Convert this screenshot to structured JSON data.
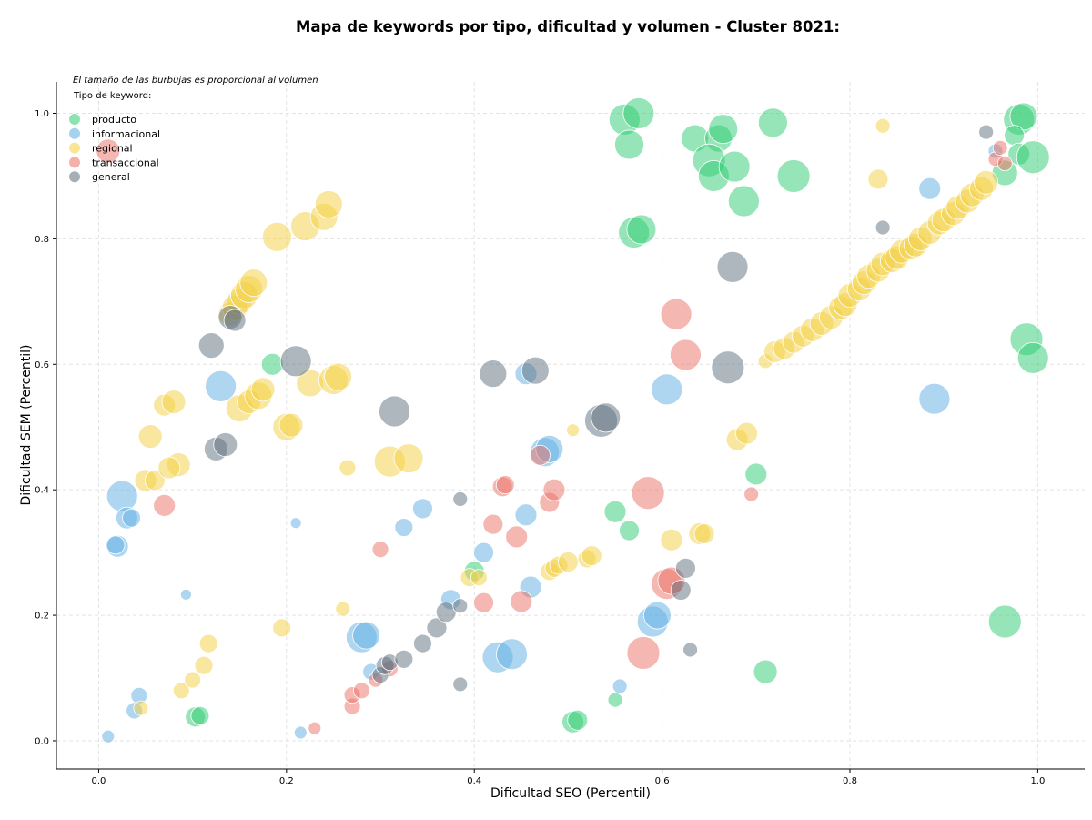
{
  "chart_data": {
    "type": "scatter",
    "title": "Mapa de keywords por tipo, dificultad y volumen - Cluster 8021:",
    "xlabel": "Dificultad SEO (Percentil)",
    "ylabel": "Dificultad SEM (Percentil)",
    "xlim": [
      -0.045,
      1.05
    ],
    "ylim": [
      -0.045,
      1.05
    ],
    "xticks": [
      0.0,
      0.2,
      0.4,
      0.6,
      0.8,
      1.0
    ],
    "yticks": [
      0.0,
      0.2,
      0.4,
      0.6,
      0.8,
      1.0
    ],
    "xtick_labels": [
      "0.0",
      "0.2",
      "0.4",
      "0.6",
      "0.8",
      "1.0"
    ],
    "ytick_labels": [
      "0.0",
      "0.2",
      "0.4",
      "0.6",
      "0.8",
      "1.0"
    ],
    "grid": true,
    "legend": {
      "placement": "top-left",
      "note": "El tamaño de las burbujas es proporcional al volumen",
      "title": "Tipo de keyword:"
    },
    "series": [
      {
        "name": "producto",
        "color": "#2ecc71",
        "points": [
          [
            0.56,
            0.99,
            17
          ],
          [
            0.575,
            1.0,
            17
          ],
          [
            0.565,
            0.95,
            16
          ],
          [
            0.57,
            0.81,
            17
          ],
          [
            0.578,
            0.815,
            16
          ],
          [
            0.635,
            0.96,
            15
          ],
          [
            0.66,
            0.96,
            15
          ],
          [
            0.665,
            0.975,
            16
          ],
          [
            0.65,
            0.925,
            18
          ],
          [
            0.655,
            0.9,
            17
          ],
          [
            0.677,
            0.915,
            17
          ],
          [
            0.687,
            0.86,
            17
          ],
          [
            0.718,
            0.985,
            16
          ],
          [
            0.74,
            0.9,
            18
          ],
          [
            0.98,
            0.99,
            17
          ],
          [
            0.985,
            0.995,
            15
          ],
          [
            0.965,
            0.905,
            14
          ],
          [
            0.975,
            0.965,
            11
          ],
          [
            0.98,
            0.935,
            12
          ],
          [
            0.995,
            0.93,
            18
          ],
          [
            0.988,
            0.64,
            18
          ],
          [
            0.995,
            0.61,
            17
          ],
          [
            0.965,
            0.19,
            18
          ],
          [
            0.71,
            0.11,
            13
          ],
          [
            0.7,
            0.425,
            12
          ],
          [
            0.55,
            0.365,
            12
          ],
          [
            0.565,
            0.335,
            11
          ],
          [
            0.55,
            0.065,
            8
          ],
          [
            0.505,
            0.03,
            12
          ],
          [
            0.51,
            0.033,
            11
          ],
          [
            0.4,
            0.27,
            11
          ],
          [
            0.185,
            0.6,
            12
          ],
          [
            0.103,
            0.038,
            11
          ],
          [
            0.108,
            0.04,
            10
          ]
        ]
      },
      {
        "name": "informacional",
        "color": "#5dade2",
        "points": [
          [
            0.025,
            0.39,
            17
          ],
          [
            0.03,
            0.355,
            12
          ],
          [
            0.035,
            0.355,
            10
          ],
          [
            0.02,
            0.31,
            12
          ],
          [
            0.018,
            0.312,
            10
          ],
          [
            0.093,
            0.233,
            6
          ],
          [
            0.043,
            0.072,
            9
          ],
          [
            0.038,
            0.048,
            9
          ],
          [
            0.01,
            0.007,
            7
          ],
          [
            0.21,
            0.347,
            6
          ],
          [
            0.215,
            0.013,
            7
          ],
          [
            0.13,
            0.565,
            17
          ],
          [
            0.28,
            0.165,
            17
          ],
          [
            0.285,
            0.168,
            15
          ],
          [
            0.29,
            0.11,
            9
          ],
          [
            0.325,
            0.34,
            10
          ],
          [
            0.345,
            0.37,
            11
          ],
          [
            0.375,
            0.225,
            11
          ],
          [
            0.41,
            0.3,
            11
          ],
          [
            0.425,
            0.133,
            17
          ],
          [
            0.44,
            0.138,
            17
          ],
          [
            0.455,
            0.585,
            12
          ],
          [
            0.455,
            0.36,
            12
          ],
          [
            0.46,
            0.245,
            12
          ],
          [
            0.475,
            0.46,
            16
          ],
          [
            0.48,
            0.465,
            15
          ],
          [
            0.555,
            0.087,
            8
          ],
          [
            0.59,
            0.19,
            17
          ],
          [
            0.595,
            0.2,
            15
          ],
          [
            0.605,
            0.56,
            17
          ],
          [
            0.885,
            0.88,
            12
          ],
          [
            0.89,
            0.545,
            17
          ],
          [
            0.955,
            0.94,
            8
          ]
        ]
      },
      {
        "name": "regional",
        "color": "#f4d03f",
        "points": [
          [
            0.045,
            0.052,
            8
          ],
          [
            0.05,
            0.415,
            12
          ],
          [
            0.055,
            0.485,
            13
          ],
          [
            0.06,
            0.415,
            11
          ],
          [
            0.07,
            0.535,
            12
          ],
          [
            0.08,
            0.54,
            13
          ],
          [
            0.085,
            0.44,
            13
          ],
          [
            0.075,
            0.435,
            12
          ],
          [
            0.088,
            0.08,
            9
          ],
          [
            0.1,
            0.097,
            9
          ],
          [
            0.112,
            0.12,
            10
          ],
          [
            0.117,
            0.155,
            10
          ],
          [
            0.14,
            0.68,
            13
          ],
          [
            0.145,
            0.69,
            14
          ],
          [
            0.15,
            0.7,
            14
          ],
          [
            0.155,
            0.71,
            15
          ],
          [
            0.16,
            0.72,
            15
          ],
          [
            0.165,
            0.73,
            15
          ],
          [
            0.15,
            0.53,
            15
          ],
          [
            0.16,
            0.54,
            13
          ],
          [
            0.17,
            0.55,
            15
          ],
          [
            0.175,
            0.56,
            13
          ],
          [
            0.19,
            0.803,
            16
          ],
          [
            0.195,
            0.18,
            10
          ],
          [
            0.2,
            0.5,
            15
          ],
          [
            0.205,
            0.503,
            13
          ],
          [
            0.22,
            0.82,
            16
          ],
          [
            0.225,
            0.57,
            15
          ],
          [
            0.24,
            0.835,
            15
          ],
          [
            0.245,
            0.855,
            15
          ],
          [
            0.25,
            0.575,
            16
          ],
          [
            0.255,
            0.58,
            15
          ],
          [
            0.26,
            0.21,
            8
          ],
          [
            0.265,
            0.435,
            9
          ],
          [
            0.31,
            0.445,
            17
          ],
          [
            0.33,
            0.45,
            16
          ],
          [
            0.395,
            0.26,
            10
          ],
          [
            0.405,
            0.26,
            9
          ],
          [
            0.48,
            0.27,
            10
          ],
          [
            0.485,
            0.275,
            10
          ],
          [
            0.49,
            0.28,
            10
          ],
          [
            0.5,
            0.285,
            11
          ],
          [
            0.505,
            0.495,
            7
          ],
          [
            0.52,
            0.29,
            10
          ],
          [
            0.525,
            0.295,
            11
          ],
          [
            0.61,
            0.32,
            12
          ],
          [
            0.64,
            0.33,
            12
          ],
          [
            0.645,
            0.33,
            11
          ],
          [
            0.68,
            0.48,
            12
          ],
          [
            0.69,
            0.49,
            12
          ],
          [
            0.71,
            0.605,
            8
          ],
          [
            0.72,
            0.62,
            12
          ],
          [
            0.73,
            0.625,
            12
          ],
          [
            0.74,
            0.635,
            12
          ],
          [
            0.75,
            0.645,
            12
          ],
          [
            0.76,
            0.655,
            13
          ],
          [
            0.77,
            0.665,
            13
          ],
          [
            0.78,
            0.675,
            13
          ],
          [
            0.79,
            0.69,
            13
          ],
          [
            0.795,
            0.695,
            13
          ],
          [
            0.8,
            0.71,
            13
          ],
          [
            0.81,
            0.72,
            13
          ],
          [
            0.815,
            0.73,
            13
          ],
          [
            0.82,
            0.74,
            13
          ],
          [
            0.83,
            0.75,
            13
          ],
          [
            0.835,
            0.76,
            13
          ],
          [
            0.845,
            0.765,
            13
          ],
          [
            0.85,
            0.77,
            13
          ],
          [
            0.855,
            0.78,
            13
          ],
          [
            0.865,
            0.785,
            13
          ],
          [
            0.87,
            0.79,
            13
          ],
          [
            0.875,
            0.8,
            13
          ],
          [
            0.885,
            0.81,
            13
          ],
          [
            0.895,
            0.825,
            13
          ],
          [
            0.9,
            0.83,
            13
          ],
          [
            0.91,
            0.84,
            13
          ],
          [
            0.915,
            0.85,
            13
          ],
          [
            0.925,
            0.86,
            13
          ],
          [
            0.93,
            0.87,
            13
          ],
          [
            0.94,
            0.88,
            13
          ],
          [
            0.945,
            0.89,
            13
          ],
          [
            0.83,
            0.895,
            11
          ],
          [
            0.835,
            0.98,
            8
          ]
        ]
      },
      {
        "name": "transaccional",
        "color": "#ec7063",
        "points": [
          [
            0.01,
            0.94,
            13
          ],
          [
            0.07,
            0.375,
            12
          ],
          [
            0.23,
            0.02,
            7
          ],
          [
            0.27,
            0.055,
            9
          ],
          [
            0.27,
            0.073,
            9
          ],
          [
            0.28,
            0.08,
            9
          ],
          [
            0.295,
            0.097,
            8
          ],
          [
            0.3,
            0.305,
            9
          ],
          [
            0.31,
            0.115,
            9
          ],
          [
            0.41,
            0.22,
            11
          ],
          [
            0.42,
            0.345,
            11
          ],
          [
            0.43,
            0.405,
            11
          ],
          [
            0.433,
            0.408,
            10
          ],
          [
            0.445,
            0.325,
            12
          ],
          [
            0.45,
            0.222,
            12
          ],
          [
            0.47,
            0.455,
            11
          ],
          [
            0.48,
            0.38,
            11
          ],
          [
            0.485,
            0.4,
            12
          ],
          [
            0.58,
            0.14,
            18
          ],
          [
            0.585,
            0.395,
            18
          ],
          [
            0.605,
            0.25,
            17
          ],
          [
            0.61,
            0.255,
            15
          ],
          [
            0.615,
            0.68,
            17
          ],
          [
            0.625,
            0.615,
            17
          ],
          [
            0.695,
            0.393,
            8
          ],
          [
            0.955,
            0.927,
            8
          ],
          [
            0.96,
            0.945,
            8
          ],
          [
            0.965,
            0.92,
            8
          ]
        ]
      },
      {
        "name": "general",
        "color": "#5d6d7e",
        "points": [
          [
            0.12,
            0.63,
            14
          ],
          [
            0.125,
            0.465,
            13
          ],
          [
            0.135,
            0.472,
            13
          ],
          [
            0.14,
            0.675,
            13
          ],
          [
            0.145,
            0.67,
            12
          ],
          [
            0.21,
            0.605,
            17
          ],
          [
            0.3,
            0.105,
            9
          ],
          [
            0.305,
            0.12,
            10
          ],
          [
            0.31,
            0.125,
            9
          ],
          [
            0.315,
            0.525,
            17
          ],
          [
            0.325,
            0.13,
            10
          ],
          [
            0.345,
            0.155,
            10
          ],
          [
            0.36,
            0.18,
            11
          ],
          [
            0.37,
            0.205,
            11
          ],
          [
            0.385,
            0.215,
            8
          ],
          [
            0.385,
            0.385,
            8
          ],
          [
            0.385,
            0.09,
            8
          ],
          [
            0.42,
            0.585,
            15
          ],
          [
            0.465,
            0.59,
            15
          ],
          [
            0.535,
            0.51,
            18
          ],
          [
            0.54,
            0.515,
            16
          ],
          [
            0.62,
            0.24,
            11
          ],
          [
            0.625,
            0.275,
            11
          ],
          [
            0.63,
            0.145,
            8
          ],
          [
            0.67,
            0.595,
            18
          ],
          [
            0.675,
            0.755,
            17
          ],
          [
            0.835,
            0.818,
            8
          ],
          [
            0.945,
            0.97,
            8
          ]
        ]
      }
    ]
  }
}
